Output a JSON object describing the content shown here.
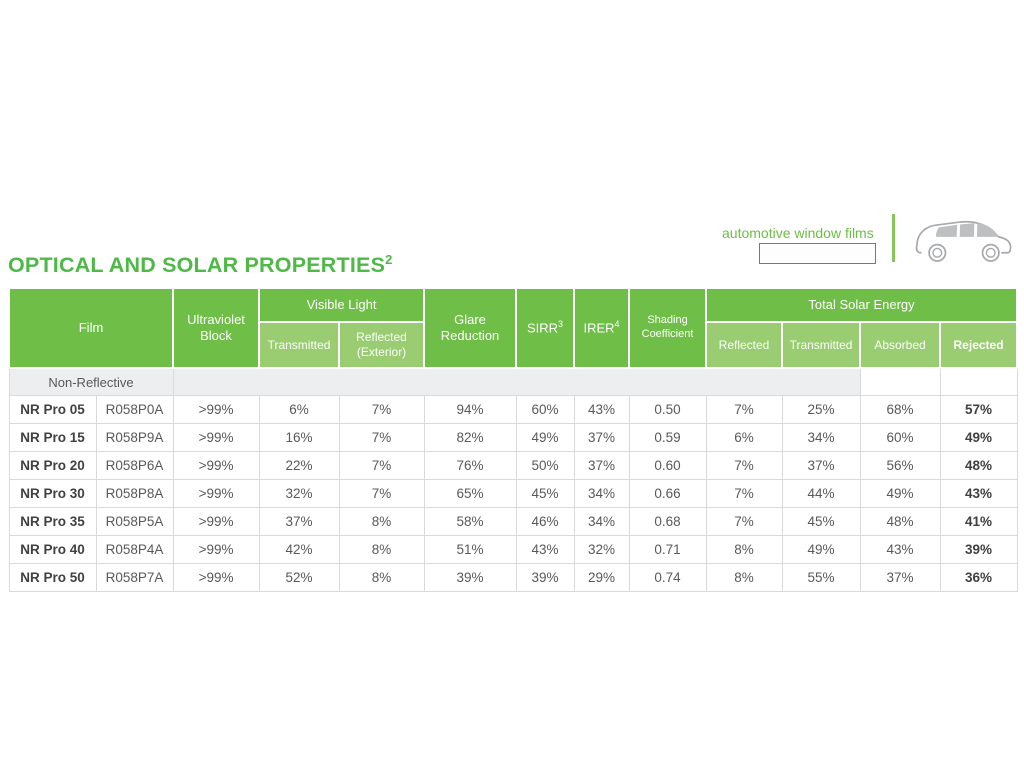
{
  "page": {
    "title": "OPTICAL AND SOLAR PROPERTIES",
    "title_sup": "2"
  },
  "brand": {
    "tagline": "automotive window films"
  },
  "colors": {
    "header_green": "#6FBE47",
    "subheader_green": "#9ACD72",
    "title_green": "#4FB948",
    "tagline_green": "#6CBE45",
    "divider_green": "#86C65B",
    "section_gray": "#EDEEF0",
    "border_gray": "#D8D9DA",
    "text_gray": "#58595B",
    "text_dark": "#414042",
    "redaction_red": "#C9574F",
    "car_gray": "#A7A9AC",
    "window_gray": "#BDBFC1"
  },
  "table": {
    "header": {
      "film": "Film",
      "uv_block": "Ultraviolet Block",
      "visible_light": "Visible Light",
      "vl_transmitted": "Transmitted",
      "vl_reflected": "Reflected (Exterior)",
      "glare_reduction": "Glare Reduction",
      "sirr": "SIRR",
      "sirr_sup": "3",
      "irer": "IRER",
      "irer_sup": "4",
      "shading_coefficient": "Shading Coefficient",
      "total_solar_energy": "Total Solar Energy",
      "tse_reflected": "Reflected",
      "tse_transmitted": "Transmitted",
      "tse_absorbed": "Absorbed",
      "tse_rejected": "Rejected"
    },
    "section_label": "Non-Reflective",
    "rows": [
      {
        "name": "NR Pro 05",
        "code": "R058P0A",
        "uv": ">99%",
        "vlt": "6%",
        "vlr": "7%",
        "glare": "94%",
        "sirr": "60%",
        "irer": "43%",
        "sc": "0.50",
        "tser": "7%",
        "tset": "25%",
        "tsea": "68%",
        "tsej": "57%"
      },
      {
        "name": "NR Pro 15",
        "code": "R058P9A",
        "uv": ">99%",
        "vlt": "16%",
        "vlr": "7%",
        "glare": "82%",
        "sirr": "49%",
        "irer": "37%",
        "sc": "0.59",
        "tser": "6%",
        "tset": "34%",
        "tsea": "60%",
        "tsej": "49%"
      },
      {
        "name": "NR Pro 20",
        "code": "R058P6A",
        "uv": ">99%",
        "vlt": "22%",
        "vlr": "7%",
        "glare": "76%",
        "sirr": "50%",
        "irer": "37%",
        "sc": "0.60",
        "tser": "7%",
        "tset": "37%",
        "tsea": "56%",
        "tsej": "48%"
      },
      {
        "name": "NR Pro 30",
        "code": "R058P8A",
        "uv": ">99%",
        "vlt": "32%",
        "vlr": "7%",
        "glare": "65%",
        "sirr": "45%",
        "irer": "34%",
        "sc": "0.66",
        "tser": "7%",
        "tset": "44%",
        "tsea": "49%",
        "tsej": "43%"
      },
      {
        "name": "NR Pro 35",
        "code": "R058P5A",
        "uv": ">99%",
        "vlt": "37%",
        "vlr": "8%",
        "glare": "58%",
        "sirr": "46%",
        "irer": "34%",
        "sc": "0.68",
        "tser": "7%",
        "tset": "45%",
        "tsea": "48%",
        "tsej": "41%"
      },
      {
        "name": "NR Pro 40",
        "code": "R058P4A",
        "uv": ">99%",
        "vlt": "42%",
        "vlr": "8%",
        "glare": "51%",
        "sirr": "43%",
        "irer": "32%",
        "sc": "0.71",
        "tser": "8%",
        "tset": "49%",
        "tsea": "43%",
        "tsej": "39%"
      },
      {
        "name": "NR Pro 50",
        "code": "R058P7A",
        "uv": ">99%",
        "vlt": "52%",
        "vlr": "8%",
        "glare": "39%",
        "sirr": "39%",
        "irer": "29%",
        "sc": "0.74",
        "tser": "8%",
        "tset": "55%",
        "tsea": "37%",
        "tsej": "36%"
      }
    ]
  }
}
